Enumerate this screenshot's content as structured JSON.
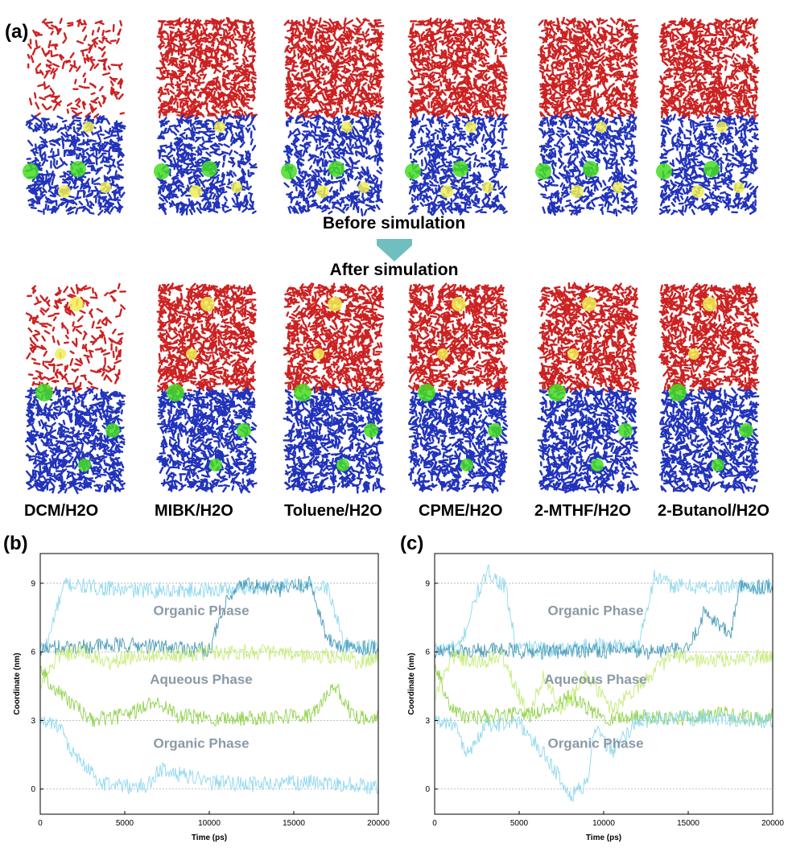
{
  "figure": {
    "panel_a_label": "(a)",
    "panel_b_label": "(b)",
    "panel_c_label": "(c)",
    "before_text": "Before simulation",
    "after_text": "After simulation",
    "systems": [
      "DCM/H2O",
      "MIBK/H2O",
      "Toluene/H2O",
      "CPME/H2O",
      "2-MTHF/H2O",
      "2-Butanol/H2O"
    ],
    "colors": {
      "organic": "#cc2222",
      "water": "#2233bb",
      "green_molecule": "#44dd22",
      "yellow_molecule": "#eeee55",
      "arrow": "#6fbfc0",
      "trace_cyan": "#8fd8ee",
      "trace_teal": "#4a9ab6",
      "trace_green": "#8fd24a",
      "trace_lightgreen": "#c6ec7a"
    }
  },
  "chart_data": [
    {
      "type": "line",
      "panel": "(b)",
      "xlabel": "Time (ps)",
      "ylabel": "Coordinate (nm)",
      "xlim": [
        0,
        20000
      ],
      "ylim": [
        -1.1,
        10.3
      ],
      "xticks": [
        0,
        5000,
        10000,
        15000,
        20000
      ],
      "yticks": [
        0,
        3,
        6,
        9
      ],
      "reference_lines": [
        0,
        3,
        6,
        9
      ],
      "annotations": [
        {
          "text": "Organic Phase",
          "x": 10000,
          "y": 7.6
        },
        {
          "text": "Aqueous Phase",
          "x": 10000,
          "y": 4.6
        },
        {
          "text": "Organic Phase",
          "x": 10000,
          "y": 1.8
        }
      ],
      "series": [
        {
          "color": "trace_cyan",
          "x": [
            0,
            500,
            800,
            1500,
            2000,
            5000,
            10000,
            12000,
            15000,
            17000,
            18000,
            20000
          ],
          "y": [
            6.1,
            6.5,
            7.5,
            9.0,
            8.9,
            8.7,
            8.7,
            8.8,
            8.9,
            8.8,
            6.3,
            6.2
          ]
        },
        {
          "color": "trace_teal",
          "x": [
            0,
            1000,
            5000,
            8000,
            10000,
            11000,
            12000,
            14000,
            16000,
            17000,
            18000,
            20000
          ],
          "y": [
            6.1,
            6.2,
            6.3,
            6.2,
            6.1,
            8.1,
            9.0,
            8.7,
            9.0,
            6.5,
            6.2,
            6.2
          ]
        },
        {
          "color": "trace_lightgreen",
          "x": [
            0,
            1000,
            2500,
            4000,
            6000,
            8000,
            10000,
            13000,
            16000,
            18000,
            19000,
            20000
          ],
          "y": [
            4.5,
            5.8,
            6.0,
            5.5,
            5.9,
            5.8,
            6.0,
            6.0,
            5.8,
            5.8,
            5.5,
            5.8
          ]
        },
        {
          "color": "trace_green",
          "x": [
            0,
            700,
            1500,
            3000,
            5000,
            7000,
            8000,
            10000,
            12000,
            14000,
            16000,
            17500,
            18500,
            20000
          ],
          "y": [
            5.4,
            4.5,
            4.0,
            3.0,
            3.2,
            3.9,
            3.2,
            3.1,
            3.1,
            3.2,
            3.2,
            4.5,
            3.2,
            3.1
          ]
        },
        {
          "color": "trace_cyan",
          "x": [
            0,
            500,
            1000,
            2000,
            2700,
            3500,
            5000,
            6500,
            7000,
            10000,
            13000,
            16000,
            20000
          ],
          "y": [
            2.9,
            3.0,
            2.8,
            1.5,
            1.0,
            0.3,
            0.1,
            0.2,
            0.9,
            0.3,
            0.2,
            0.3,
            0.1
          ]
        }
      ]
    },
    {
      "type": "line",
      "panel": "(c)",
      "xlabel": "Time (ps)",
      "ylabel": "Coordinate (nm)",
      "xlim": [
        0,
        20000
      ],
      "ylim": [
        -1.1,
        10.3
      ],
      "xticks": [
        0,
        5000,
        10000,
        15000,
        20000
      ],
      "yticks": [
        0,
        3,
        6,
        9
      ],
      "reference_lines": [
        0,
        3,
        6,
        9
      ],
      "annotations": [
        {
          "text": "Organic Phase",
          "x": 10000,
          "y": 7.6
        },
        {
          "text": "Aqueous Phase",
          "x": 10000,
          "y": 4.6
        },
        {
          "text": "Organic Phase",
          "x": 10000,
          "y": 1.8
        }
      ],
      "series": [
        {
          "color": "trace_cyan",
          "x": [
            0,
            1500,
            2500,
            3200,
            4200,
            4800,
            7000,
            10000,
            12000,
            13000,
            14000,
            17000,
            18000,
            20000
          ],
          "y": [
            6.1,
            6.2,
            8.5,
            9.5,
            8.8,
            6.2,
            6.1,
            6.3,
            6.2,
            9.3,
            8.9,
            8.8,
            8.9,
            8.8
          ]
        },
        {
          "color": "trace_teal",
          "x": [
            0,
            3000,
            6000,
            9000,
            12000,
            15000,
            16000,
            17500,
            18000,
            20000
          ],
          "y": [
            6.0,
            6.1,
            6.0,
            6.1,
            6.0,
            6.1,
            7.8,
            6.7,
            8.8,
            8.9
          ]
        },
        {
          "color": "trace_lightgreen",
          "x": [
            0,
            1000,
            2500,
            4000,
            5500,
            6500,
            7500,
            9000,
            10500,
            12000,
            14000,
            16000,
            20000
          ],
          "y": [
            4.0,
            5.8,
            5.5,
            5.8,
            3.2,
            5.0,
            3.4,
            5.0,
            3.5,
            4.5,
            5.8,
            5.6,
            5.8
          ]
        },
        {
          "color": "trace_green",
          "x": [
            0,
            1000,
            2000,
            4000,
            6000,
            8000,
            10000,
            13000,
            15000,
            17000,
            19000,
            20000
          ],
          "y": [
            5.5,
            3.5,
            3.1,
            3.2,
            3.3,
            4.0,
            3.1,
            3.2,
            3.1,
            3.3,
            3.1,
            3.2
          ]
        },
        {
          "color": "trace_cyan",
          "x": [
            0,
            1000,
            2000,
            3000,
            5000,
            7000,
            8000,
            9000,
            9500,
            10500,
            12000,
            15000,
            20000
          ],
          "y": [
            3.0,
            2.9,
            1.5,
            2.8,
            2.9,
            1.0,
            -0.3,
            0.2,
            2.7,
            1.6,
            3.0,
            3.1,
            3.0
          ]
        }
      ]
    }
  ]
}
